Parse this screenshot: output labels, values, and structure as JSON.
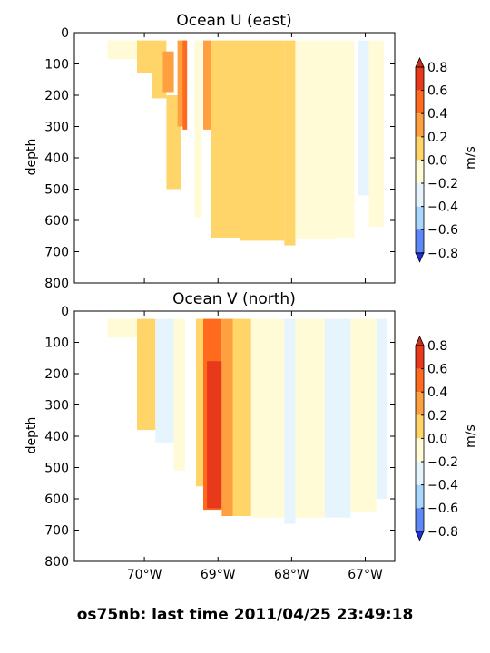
{
  "footer": "os75nb: last time 2011/04/25 23:49:18",
  "colorbar": {
    "label": "m/s",
    "levels": [
      0.8,
      0.6,
      0.4,
      0.2,
      0.0,
      -0.2,
      -0.4,
      -0.6,
      -0.8
    ],
    "tick_labels": [
      "0.8",
      "0.6",
      "0.4",
      "0.2",
      "0.0",
      "−0.2",
      "−0.4",
      "−0.6",
      "−0.8"
    ],
    "colors_top_to_bottom": [
      "#e83a1a",
      "#ff6a1e",
      "#ffa040",
      "#ffd56a",
      "#fffbd6",
      "#e6f5fd",
      "#a8d6fc",
      "#7aaff9",
      "#5e88f7",
      "#2f4cf5"
    ],
    "extend_colors": {
      "max": "#c8301a",
      "min": "#1f2fe0"
    }
  },
  "chart_data": [
    {
      "type": "heatmap",
      "title": "Ocean U (east)",
      "xlabel": "",
      "ylabel": "depth",
      "xlim": [
        -70.95,
        -66.6
      ],
      "ylim": [
        800,
        0
      ],
      "y_ticks": [
        "0",
        "100",
        "200",
        "300",
        "400",
        "500",
        "600",
        "700",
        "800"
      ],
      "x_ticks": [],
      "colorbar_label": "m/s",
      "bands": [
        {
          "x0": -70.5,
          "x1": -70.1,
          "y0": 25,
          "y1": 85,
          "value": -0.1
        },
        {
          "x0": -70.1,
          "x1": -69.9,
          "y0": 25,
          "y1": 130,
          "value": 0.1
        },
        {
          "x0": -69.9,
          "x1": -69.7,
          "y0": 25,
          "y1": 210,
          "value": 0.1
        },
        {
          "x0": -69.75,
          "x1": -69.6,
          "y0": 60,
          "y1": 190,
          "value": 0.3
        },
        {
          "x0": -69.7,
          "x1": -69.5,
          "y0": 200,
          "y1": 500,
          "value": 0.1
        },
        {
          "x0": -69.55,
          "x1": -69.45,
          "y0": 25,
          "y1": 300,
          "value": 0.3
        },
        {
          "x0": -69.48,
          "x1": -69.42,
          "y0": 25,
          "y1": 310,
          "value": 0.5
        },
        {
          "x0": -69.32,
          "x1": -69.22,
          "y0": 25,
          "y1": 590,
          "value": -0.1
        },
        {
          "x0": -69.2,
          "x1": -69.1,
          "y0": 25,
          "y1": 310,
          "value": 0.3
        },
        {
          "x0": -69.1,
          "x1": -68.7,
          "y0": 25,
          "y1": 655,
          "value": 0.1
        },
        {
          "x0": -68.7,
          "x1": -68.1,
          "y0": 25,
          "y1": 665,
          "value": 0.1
        },
        {
          "x0": -68.1,
          "x1": -67.95,
          "y0": 25,
          "y1": 680,
          "value": 0.1
        },
        {
          "x0": -67.95,
          "x1": -67.75,
          "y0": 25,
          "y1": 660,
          "value": -0.1
        },
        {
          "x0": -67.75,
          "x1": -67.4,
          "y0": 25,
          "y1": 660,
          "value": -0.1
        },
        {
          "x0": -67.4,
          "x1": -67.15,
          "y0": 25,
          "y1": 655,
          "value": -0.1
        },
        {
          "x0": -67.1,
          "x1": -66.95,
          "y0": 25,
          "y1": 520,
          "value": -0.3
        },
        {
          "x0": -66.95,
          "x1": -66.75,
          "y0": 25,
          "y1": 620,
          "value": -0.1
        }
      ]
    },
    {
      "type": "heatmap",
      "title": "Ocean V (north)",
      "xlabel": "",
      "ylabel": "depth",
      "xlim": [
        -70.95,
        -66.6
      ],
      "ylim": [
        800,
        0
      ],
      "y_ticks": [
        "0",
        "100",
        "200",
        "300",
        "400",
        "500",
        "600",
        "700",
        "800"
      ],
      "x_ticks": [
        {
          "value": -70.0,
          "label": "70°W"
        },
        {
          "value": -69.0,
          "label": "69°W"
        },
        {
          "value": -68.0,
          "label": "68°W"
        },
        {
          "value": -67.0,
          "label": "67°W"
        }
      ],
      "colorbar_label": "m/s",
      "bands": [
        {
          "x0": -70.5,
          "x1": -70.1,
          "y0": 25,
          "y1": 85,
          "value": -0.1
        },
        {
          "x0": -70.1,
          "x1": -69.85,
          "y0": 25,
          "y1": 380,
          "value": 0.1
        },
        {
          "x0": -69.85,
          "x1": -69.6,
          "y0": 25,
          "y1": 420,
          "value": -0.3
        },
        {
          "x0": -69.6,
          "x1": -69.45,
          "y0": 25,
          "y1": 510,
          "value": -0.1
        },
        {
          "x0": -69.3,
          "x1": -69.2,
          "y0": 25,
          "y1": 560,
          "value": 0.1
        },
        {
          "x0": -69.2,
          "x1": -68.95,
          "y0": 25,
          "y1": 635,
          "value": 0.5
        },
        {
          "x0": -69.15,
          "x1": -68.95,
          "y0": 160,
          "y1": 630,
          "value": 0.7
        },
        {
          "x0": -68.95,
          "x1": -68.8,
          "y0": 25,
          "y1": 655,
          "value": 0.3
        },
        {
          "x0": -68.8,
          "x1": -68.55,
          "y0": 25,
          "y1": 655,
          "value": 0.1
        },
        {
          "x0": -68.55,
          "x1": -68.1,
          "y0": 25,
          "y1": 660,
          "value": -0.1
        },
        {
          "x0": -68.1,
          "x1": -67.95,
          "y0": 25,
          "y1": 680,
          "value": -0.3
        },
        {
          "x0": -67.95,
          "x1": -67.55,
          "y0": 25,
          "y1": 660,
          "value": -0.1
        },
        {
          "x0": -67.55,
          "x1": -67.2,
          "y0": 25,
          "y1": 660,
          "value": -0.3
        },
        {
          "x0": -67.2,
          "x1": -66.85,
          "y0": 25,
          "y1": 640,
          "value": -0.1
        },
        {
          "x0": -66.85,
          "x1": -66.7,
          "y0": 25,
          "y1": 600,
          "value": -0.3
        }
      ]
    }
  ]
}
